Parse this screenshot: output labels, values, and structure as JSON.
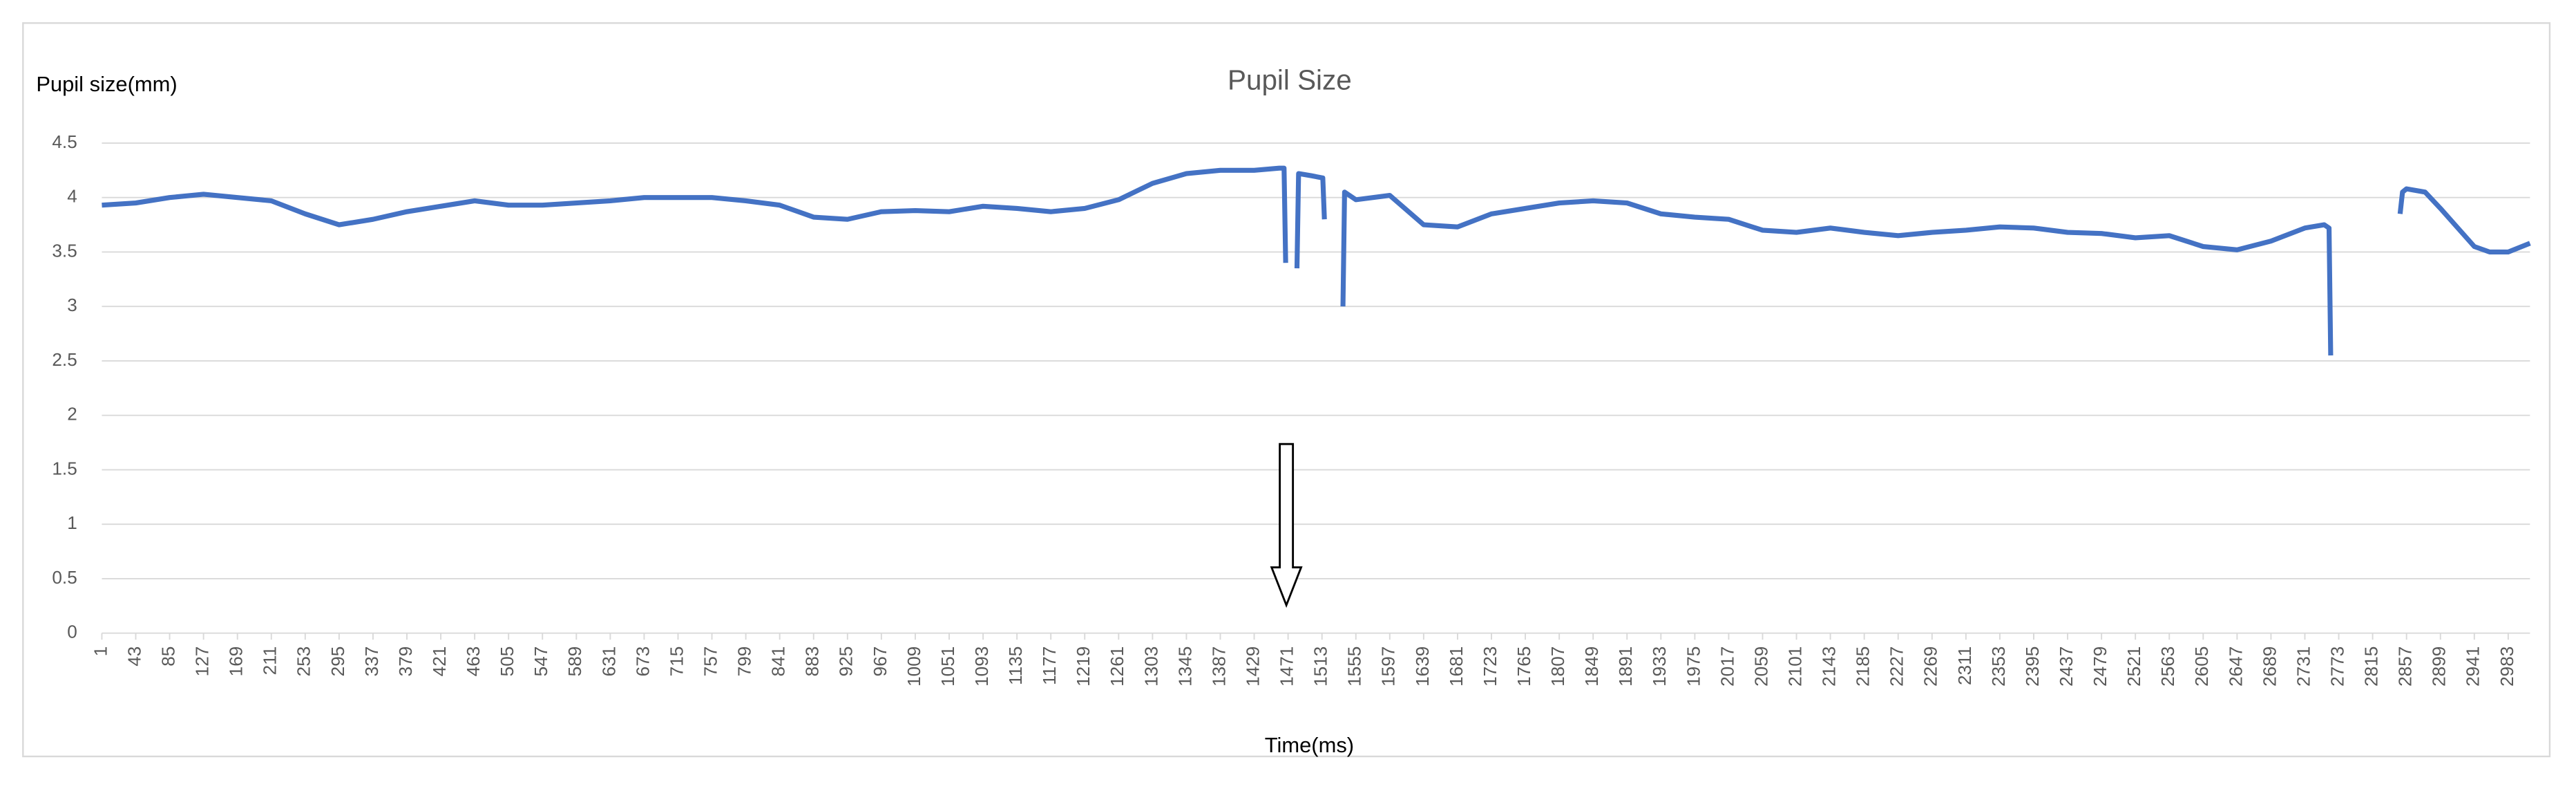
{
  "chart_data": {
    "type": "line",
    "title": "Pupil Size",
    "y_label": "Pupil size(mm)",
    "x_label": "Time(ms)",
    "xlim": [
      1,
      3010
    ],
    "ylim": [
      0,
      4.5
    ],
    "yticks": [
      0,
      0.5,
      1,
      1.5,
      2,
      2.5,
      3,
      3.5,
      4,
      4.5
    ],
    "xticks": [
      1,
      43,
      85,
      127,
      169,
      211,
      253,
      295,
      337,
      379,
      421,
      463,
      505,
      547,
      589,
      631,
      673,
      715,
      757,
      799,
      841,
      883,
      925,
      967,
      1009,
      1051,
      1093,
      1135,
      1177,
      1219,
      1261,
      1303,
      1345,
      1387,
      1429,
      1471,
      1513,
      1555,
      1597,
      1639,
      1681,
      1723,
      1765,
      1807,
      1849,
      1891,
      1933,
      1975,
      2017,
      2059,
      2101,
      2143,
      2185,
      2227,
      2269,
      2311,
      2353,
      2395,
      2437,
      2479,
      2521,
      2563,
      2605,
      2647,
      2689,
      2731,
      2773,
      2815,
      2857,
      2899,
      2941,
      2983
    ],
    "grid": true,
    "series": [
      {
        "color": "#4472c4",
        "x": [
          1,
          43,
          85,
          127,
          169,
          211,
          253,
          295,
          337,
          379,
          421,
          463,
          505,
          547,
          589,
          631,
          673,
          715,
          757,
          799,
          841,
          883,
          925,
          967,
          1009,
          1051,
          1093,
          1135,
          1177,
          1219,
          1261,
          1303,
          1345,
          1387,
          1429,
          1460,
          1466,
          1468,
          null,
          1482,
          1484,
          1500,
          1514,
          1516,
          null,
          1539,
          1541,
          1555,
          1597,
          1639,
          1681,
          1723,
          1765,
          1807,
          1849,
          1891,
          1933,
          1975,
          2017,
          2059,
          2101,
          2143,
          2185,
          2227,
          2269,
          2311,
          2353,
          2395,
          2437,
          2479,
          2521,
          2563,
          2605,
          2647,
          2689,
          2731,
          2755,
          2761,
          2763,
          null,
          2849,
          2852,
          2857,
          2880,
          2899,
          2941,
          2960,
          2983,
          3010
        ],
        "values": [
          3.93,
          3.95,
          4.0,
          4.03,
          4.0,
          3.97,
          3.85,
          3.75,
          3.8,
          3.87,
          3.92,
          3.97,
          3.93,
          3.93,
          3.95,
          3.97,
          4.0,
          4.0,
          4.0,
          3.97,
          3.93,
          3.82,
          3.8,
          3.87,
          3.88,
          3.87,
          3.92,
          3.9,
          3.87,
          3.9,
          3.98,
          4.13,
          4.22,
          4.25,
          4.25,
          4.27,
          4.27,
          3.4,
          null,
          3.35,
          4.22,
          4.2,
          4.18,
          3.8,
          null,
          3.0,
          4.05,
          3.98,
          4.02,
          3.75,
          3.73,
          3.85,
          3.9,
          3.95,
          3.97,
          3.95,
          3.85,
          3.82,
          3.8,
          3.7,
          3.68,
          3.72,
          3.68,
          3.65,
          3.68,
          3.7,
          3.73,
          3.72,
          3.68,
          3.67,
          3.63,
          3.65,
          3.55,
          3.52,
          3.6,
          3.72,
          3.75,
          3.72,
          2.55,
          null,
          3.85,
          4.05,
          4.08,
          4.05,
          3.9,
          3.55,
          3.5,
          3.5,
          3.58
        ]
      }
    ]
  }
}
